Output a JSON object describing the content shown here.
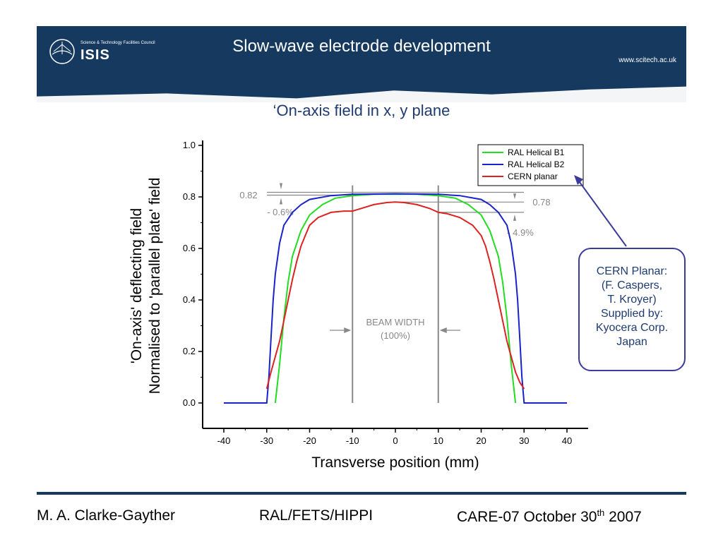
{
  "header": {
    "title": "Slow-wave electrode development",
    "logo_line": "Science & Technology Facilities Council",
    "logo_name": "ISIS",
    "url": "www.scitech.ac.uk"
  },
  "subtitle": "‘On-axis field in x, y plane",
  "chart_data": {
    "type": "line",
    "xlabel": "Transverse position (mm)",
    "ylabel_line1": "'On-axis' deflecting field",
    "ylabel_line2": "Normalised to 'parallel plate' field",
    "xlim": [
      -40,
      40
    ],
    "ylim": [
      0.0,
      1.0
    ],
    "xticks": [
      "-40",
      "-30",
      "-20",
      "-10",
      "0",
      "10",
      "20",
      "30",
      "40"
    ],
    "yticks": [
      "0.0",
      "0.2",
      "0.4",
      "0.6",
      "0.8",
      "1.0"
    ],
    "legend_position": "top-right",
    "series": [
      {
        "name": "RAL Helical B1",
        "color": "#22dd22",
        "points": [
          [
            -28,
            0.0
          ],
          [
            -27,
            0.15
          ],
          [
            -26,
            0.33
          ],
          [
            -25,
            0.47
          ],
          [
            -24,
            0.57
          ],
          [
            -22,
            0.67
          ],
          [
            -20,
            0.73
          ],
          [
            -17,
            0.77
          ],
          [
            -14,
            0.795
          ],
          [
            -10,
            0.805
          ],
          [
            -5,
            0.81
          ],
          [
            0,
            0.81
          ],
          [
            5,
            0.81
          ],
          [
            10,
            0.805
          ],
          [
            14,
            0.795
          ],
          [
            17,
            0.77
          ],
          [
            20,
            0.73
          ],
          [
            22,
            0.67
          ],
          [
            24,
            0.57
          ],
          [
            25,
            0.47
          ],
          [
            26,
            0.33
          ],
          [
            27,
            0.15
          ],
          [
            28,
            0.0
          ]
        ]
      },
      {
        "name": "RAL Helical B2",
        "color": "#1a22cc",
        "points": [
          [
            -40,
            0.0
          ],
          [
            -30,
            0.0
          ],
          [
            -29.5,
            0.1
          ],
          [
            -29,
            0.25
          ],
          [
            -28.5,
            0.4
          ],
          [
            -28,
            0.5
          ],
          [
            -27,
            0.62
          ],
          [
            -26,
            0.69
          ],
          [
            -24,
            0.74
          ],
          [
            -22,
            0.77
          ],
          [
            -20,
            0.79
          ],
          [
            -15,
            0.805
          ],
          [
            -10,
            0.81
          ],
          [
            0,
            0.812
          ],
          [
            10,
            0.81
          ],
          [
            15,
            0.805
          ],
          [
            20,
            0.79
          ],
          [
            22,
            0.77
          ],
          [
            24,
            0.74
          ],
          [
            26,
            0.69
          ],
          [
            27,
            0.62
          ],
          [
            28,
            0.5
          ],
          [
            28.5,
            0.4
          ],
          [
            29,
            0.25
          ],
          [
            29.5,
            0.1
          ],
          [
            30,
            0.0
          ],
          [
            40,
            0.0
          ]
        ]
      },
      {
        "name": "CERN planar",
        "color": "#dd2222",
        "points": [
          [
            -30,
            0.055
          ],
          [
            -29,
            0.12
          ],
          [
            -28,
            0.18
          ],
          [
            -27,
            0.24
          ],
          [
            -26,
            0.32
          ],
          [
            -25,
            0.4
          ],
          [
            -24,
            0.48
          ],
          [
            -23,
            0.55
          ],
          [
            -22,
            0.61
          ],
          [
            -21,
            0.65
          ],
          [
            -20,
            0.69
          ],
          [
            -18,
            0.72
          ],
          [
            -15,
            0.74
          ],
          [
            -12,
            0.745
          ],
          [
            -10,
            0.745
          ],
          [
            -8,
            0.755
          ],
          [
            -5,
            0.77
          ],
          [
            -2,
            0.778
          ],
          [
            0,
            0.78
          ],
          [
            2,
            0.778
          ],
          [
            5,
            0.77
          ],
          [
            8,
            0.755
          ],
          [
            10,
            0.74
          ],
          [
            12,
            0.735
          ],
          [
            15,
            0.72
          ],
          [
            18,
            0.69
          ],
          [
            20,
            0.65
          ],
          [
            21,
            0.61
          ],
          [
            22,
            0.55
          ],
          [
            23,
            0.48
          ],
          [
            24,
            0.4
          ],
          [
            25,
            0.32
          ],
          [
            26,
            0.24
          ],
          [
            27,
            0.18
          ],
          [
            28,
            0.12
          ],
          [
            29,
            0.08
          ],
          [
            30,
            0.055
          ]
        ]
      }
    ],
    "annotations": {
      "label_082": "0.82",
      "label_078": "0.78",
      "label_06": "- 0.6%",
      "label_49": "- 4.9%",
      "beam_line1": "BEAM WIDTH",
      "beam_line2": "(100%)"
    }
  },
  "callout": {
    "lines": [
      "CERN Planar:",
      "(F. Caspers,",
      "T. Kroyer)",
      "Supplied by:",
      "Kyocera Corp.",
      "Japan"
    ]
  },
  "footer": {
    "author": "M. A. Clarke-Gayther",
    "group": "RAL/FETS/HIPPI",
    "event_prefix": "CARE-07 October 30",
    "event_sup": "th",
    "event_year": " 2007"
  }
}
